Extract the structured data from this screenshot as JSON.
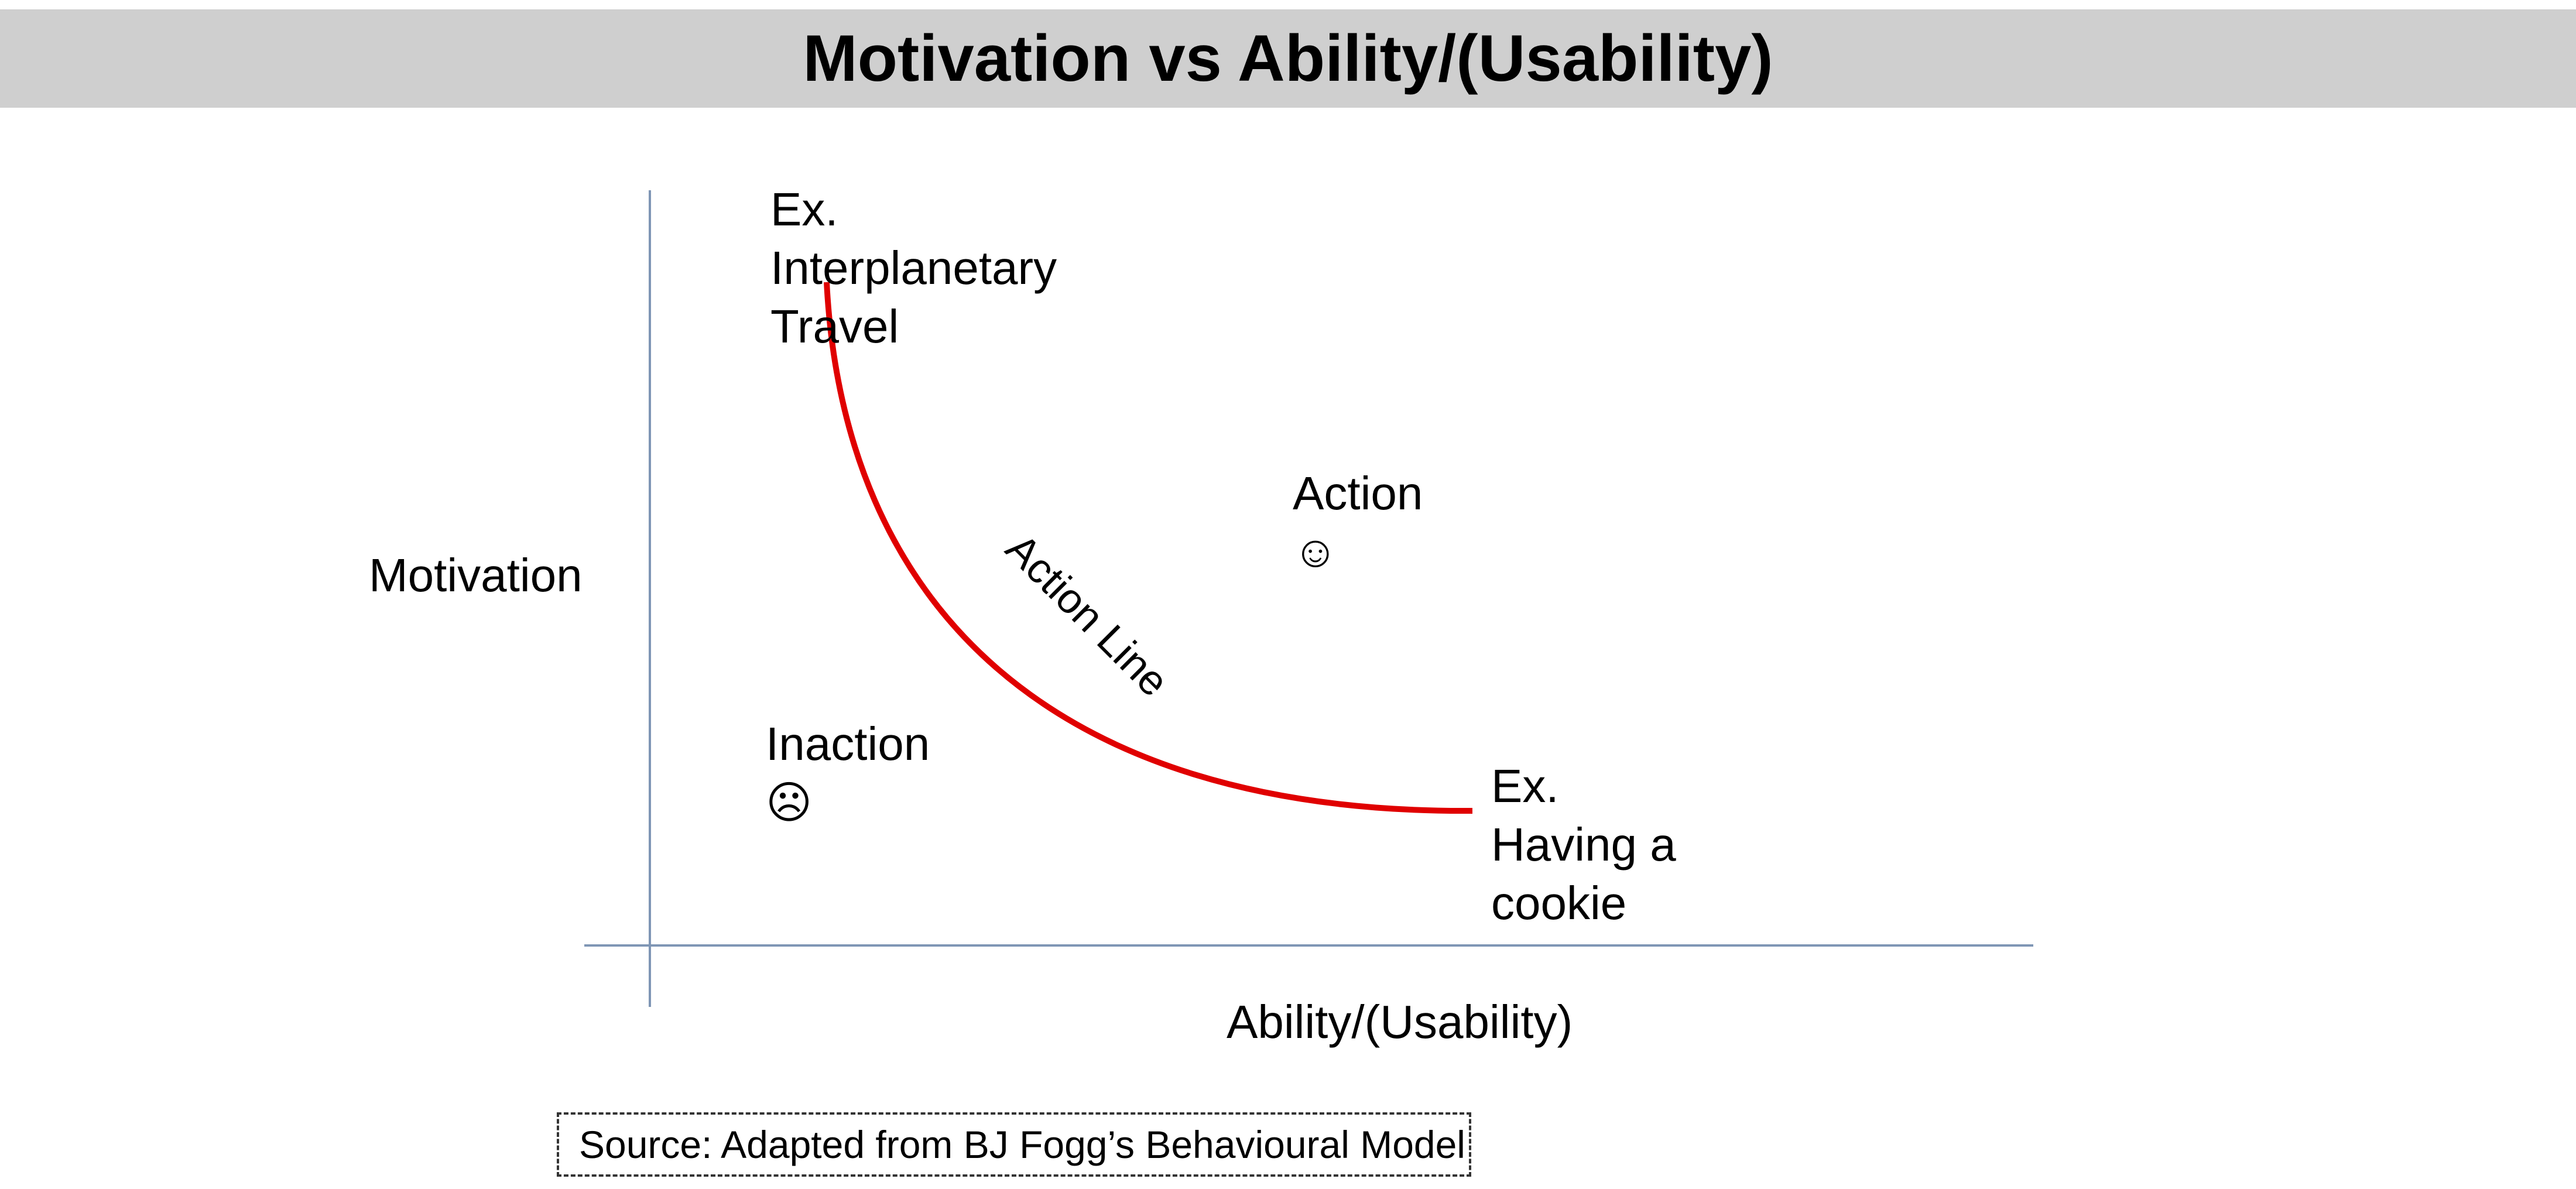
{
  "title": "Motivation vs Ability/(Usability)",
  "axes": {
    "y_label": "Motivation",
    "x_label": "Ability/(Usability)"
  },
  "curve": {
    "label": "Action Line",
    "color": "#e00000"
  },
  "axis_color": "#7f96b5",
  "examples": {
    "high_motivation": [
      "Ex.",
      "Interplanetary",
      "Travel"
    ],
    "high_ability": [
      "Ex.",
      "Having a",
      "cookie"
    ]
  },
  "regions": {
    "action": {
      "label": "Action",
      "icon": "smiley-face-icon",
      "glyph": "☺"
    },
    "inaction": {
      "label": "Inaction",
      "icon": "frowning-face-icon",
      "glyph": "☹"
    }
  },
  "source": "Source: Adapted from BJ Fogg’s Behavioural Model"
}
